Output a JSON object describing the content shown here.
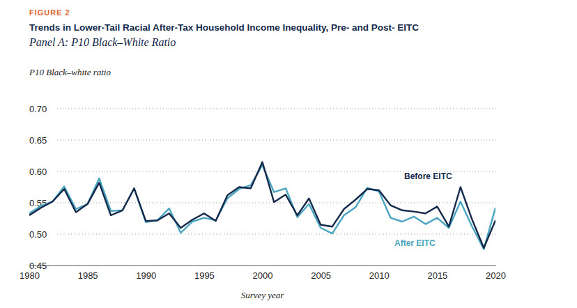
{
  "chart_data": {
    "type": "line",
    "figure_label": "FIGURE 2",
    "title": "Trends in Lower-Tail Racial After-Tax Household Income Inequality, Pre- and Post- EITC",
    "subtitle": "Panel A: P10 Black–White Ratio",
    "ylabel": "P10 Black–white ratio",
    "xlabel": "Survey year",
    "x": [
      1980,
      1981,
      1982,
      1983,
      1984,
      1985,
      1986,
      1987,
      1988,
      1989,
      1990,
      1991,
      1992,
      1993,
      1994,
      1995,
      1996,
      1997,
      1998,
      1999,
      2000,
      2001,
      2002,
      2003,
      2004,
      2005,
      2006,
      2007,
      2008,
      2009,
      2010,
      2011,
      2012,
      2013,
      2014,
      2015,
      2016,
      2017,
      2018,
      2019,
      2020
    ],
    "series": [
      {
        "name": "Before EITC",
        "color": "#14294b",
        "values": [
          0.53,
          0.542,
          0.552,
          0.572,
          0.535,
          0.548,
          0.582,
          0.53,
          0.538,
          0.573,
          0.521,
          0.522,
          0.533,
          0.51,
          0.523,
          0.533,
          0.521,
          0.562,
          0.575,
          0.573,
          0.615,
          0.551,
          0.563,
          0.53,
          0.557,
          0.515,
          0.512,
          0.54,
          0.555,
          0.572,
          0.57,
          0.546,
          0.538,
          0.536,
          0.533,
          0.544,
          0.512,
          0.575,
          0.523,
          0.478,
          0.522
        ]
      },
      {
        "name": "After EITC",
        "color": "#4aa5c0",
        "values": [
          0.533,
          0.545,
          0.552,
          0.576,
          0.54,
          0.548,
          0.589,
          0.537,
          0.538,
          0.573,
          0.519,
          0.522,
          0.541,
          0.502,
          0.52,
          0.526,
          0.522,
          0.557,
          0.572,
          0.578,
          0.61,
          0.567,
          0.573,
          0.527,
          0.548,
          0.51,
          0.501,
          0.53,
          0.543,
          0.574,
          0.568,
          0.526,
          0.52,
          0.528,
          0.516,
          0.526,
          0.51,
          0.552,
          0.512,
          0.476,
          0.542
        ]
      }
    ],
    "xlim": [
      1980,
      2020
    ],
    "xticks": [
      1980,
      1985,
      1990,
      1995,
      2000,
      2005,
      2010,
      2015,
      2020
    ],
    "ylim": [
      0.45,
      0.7
    ],
    "yticks": [
      0.45,
      {
        "value": 0.5,
        "label": "0.50"
      },
      0.55,
      {
        "value": 0.6,
        "label": "0.60"
      },
      0.65,
      {
        "value": 0.7,
        "label": "0.70"
      }
    ],
    "grid": true
  }
}
